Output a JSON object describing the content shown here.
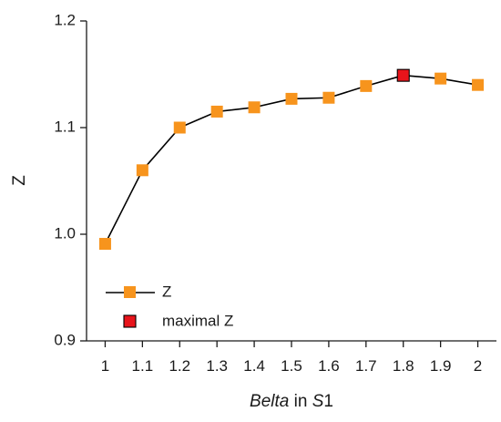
{
  "chart_data": {
    "type": "line",
    "xlabel_parts": {
      "var": "Belta",
      "in": " in ",
      "s_var": "S",
      "s_num": "1"
    },
    "ylabel": "Z",
    "xlim": [
      0.95,
      2.05
    ],
    "ylim": [
      0.9,
      1.2
    ],
    "x_ticks": [
      1,
      1.1,
      1.2,
      1.3,
      1.4,
      1.5,
      1.6,
      1.7,
      1.8,
      1.9,
      2
    ],
    "x_tick_labels": [
      "1",
      "1.1",
      "1.2",
      "1.3",
      "1.4",
      "1.5",
      "1.6",
      "1.7",
      "1.8",
      "1.9",
      "2"
    ],
    "y_ticks": [
      0.9,
      1.0,
      1.1,
      1.2
    ],
    "y_tick_labels": [
      "0.9",
      "1.0",
      "1.1",
      "1.2"
    ],
    "series": [
      {
        "name": "Z",
        "color": "#f7941d",
        "x": [
          1,
          1.1,
          1.2,
          1.3,
          1.4,
          1.5,
          1.6,
          1.7,
          1.8,
          1.9,
          2
        ],
        "y": [
          0.991,
          1.06,
          1.1,
          1.115,
          1.119,
          1.127,
          1.128,
          1.139,
          1.149,
          1.146,
          1.14
        ]
      }
    ],
    "highlight": {
      "name": "maximal Z",
      "color": "#e8141b",
      "x": 1.8,
      "y": 1.149
    },
    "legend_position": "lower-left",
    "line_color": "#000000",
    "grid": false
  }
}
